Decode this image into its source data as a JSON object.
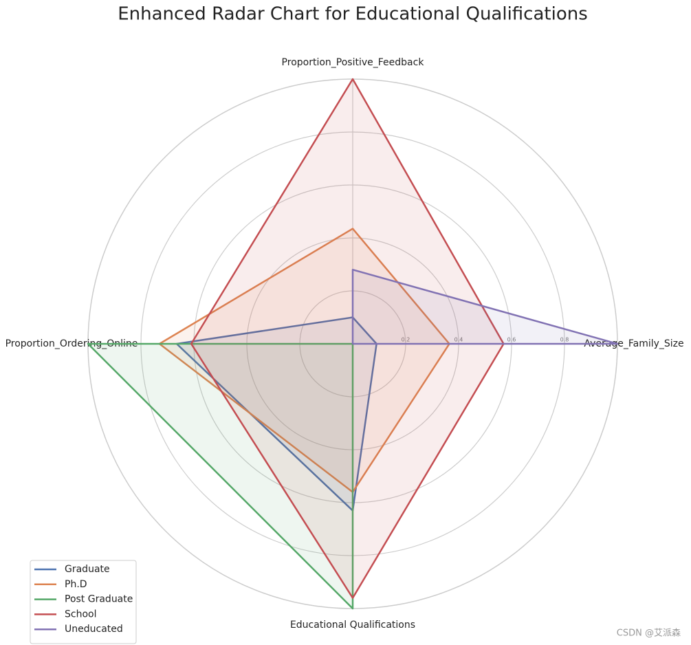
{
  "chart_data": {
    "type": "radar",
    "title": "Enhanced Radar Chart for Educational Qualifications",
    "categories": [
      "Average_Family_Size",
      "Proportion_Positive_Feedback",
      "Proportion_Ordering_Online",
      "Educational Qualifications"
    ],
    "series": [
      {
        "name": "Graduate",
        "color": "#4c72b0",
        "values": [
          0.09,
          0.1,
          0.665,
          0.63
        ]
      },
      {
        "name": "Ph.D",
        "color": "#dd8452",
        "values": [
          0.365,
          0.435,
          0.73,
          0.56
        ]
      },
      {
        "name": "Post Graduate",
        "color": "#55a868",
        "values": [
          0,
          0,
          1.0,
          1.0
        ]
      },
      {
        "name": "School",
        "color": "#c44e52",
        "values": [
          0.57,
          1.0,
          0.61,
          0.96
        ]
      },
      {
        "name": "Uneducated",
        "color": "#8172b3",
        "values": [
          1.0,
          0.28,
          0,
          0
        ]
      }
    ],
    "ylim": [
      0,
      1
    ],
    "yticks": [
      0.2,
      0.4,
      0.6,
      0.8
    ],
    "grid": true,
    "legend": "lower left",
    "watermark": "CSDN @艾派森"
  }
}
